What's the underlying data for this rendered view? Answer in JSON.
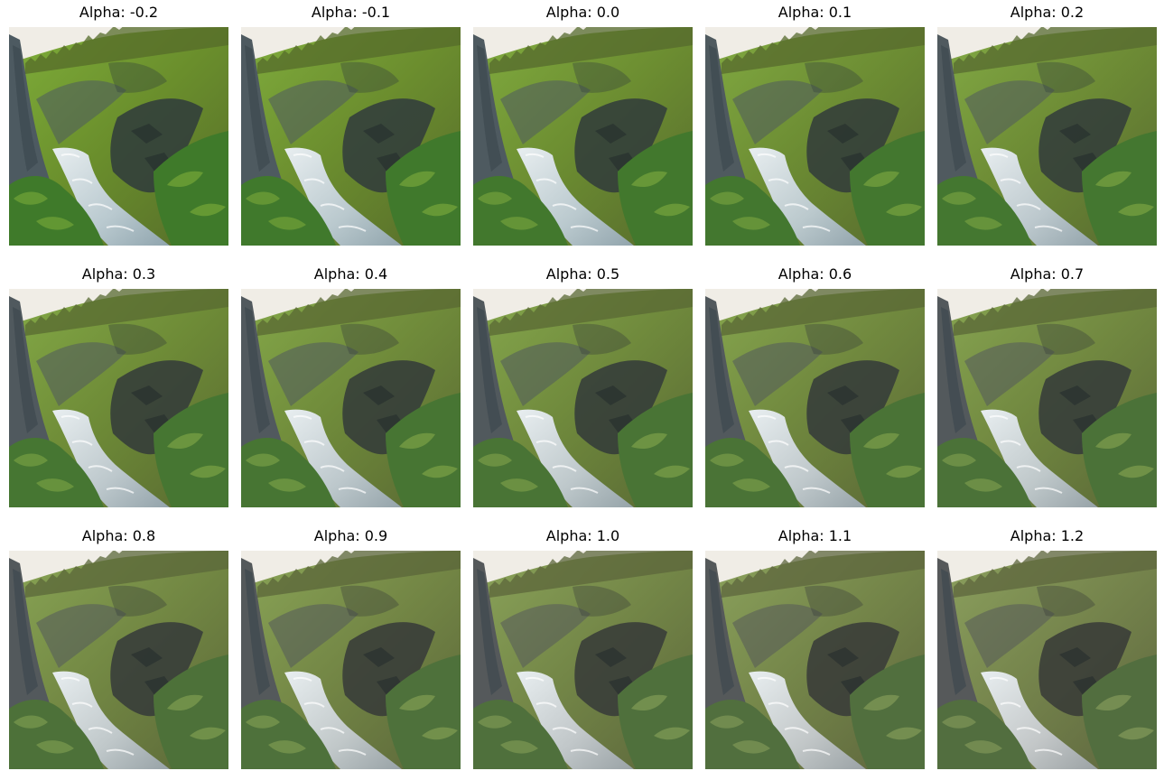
{
  "panels": [
    {
      "title": "Alpha: -0.2",
      "alpha": -0.2
    },
    {
      "title": "Alpha: -0.1",
      "alpha": -0.1
    },
    {
      "title": "Alpha: 0.0",
      "alpha": 0.0
    },
    {
      "title": "Alpha: 0.1",
      "alpha": 0.1
    },
    {
      "title": "Alpha: 0.2",
      "alpha": 0.2
    },
    {
      "title": "Alpha: 0.3",
      "alpha": 0.3
    },
    {
      "title": "Alpha: 0.4",
      "alpha": 0.4
    },
    {
      "title": "Alpha: 0.5",
      "alpha": 0.5
    },
    {
      "title": "Alpha: 0.6",
      "alpha": 0.6
    },
    {
      "title": "Alpha: 0.7",
      "alpha": 0.7
    },
    {
      "title": "Alpha: 0.8",
      "alpha": 0.8
    },
    {
      "title": "Alpha: 0.9",
      "alpha": 0.9
    },
    {
      "title": "Alpha: 1.0",
      "alpha": 1.0
    },
    {
      "title": "Alpha: 1.1",
      "alpha": 1.1
    },
    {
      "title": "Alpha: 1.2",
      "alpha": 1.2
    }
  ],
  "colors": {
    "sky": "#f0ede6",
    "cliff_left": "#4d5a61",
    "slope_green": "#6a8e2c",
    "rock_dark": "#2f3b3c",
    "vegetation": "#3f7a2a",
    "vegetation_light": "#7fae3a",
    "water": "#b9c9cf",
    "water_shadow": "#8fa4ad",
    "ridge": "#556b2a"
  }
}
